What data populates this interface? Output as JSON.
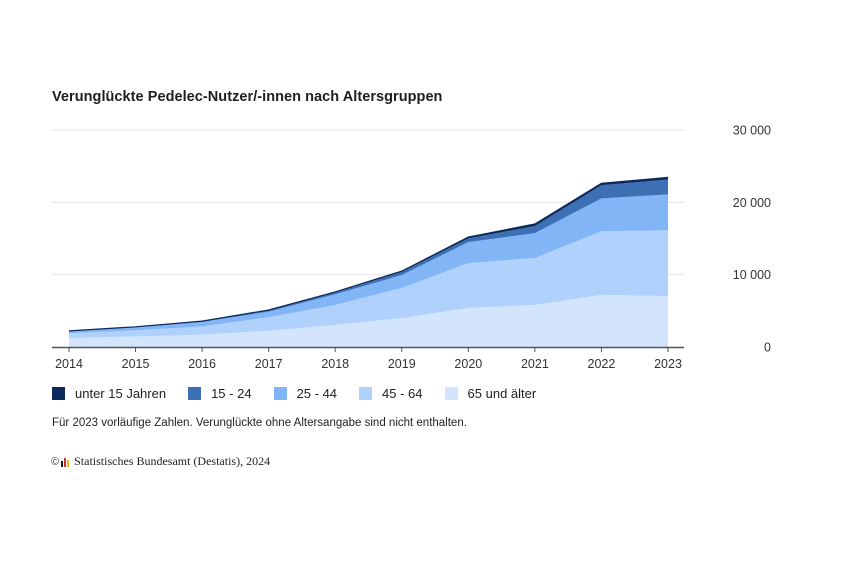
{
  "chart_data": {
    "type": "area",
    "stacked": true,
    "title": "Verunglückte Pedelec-Nutzer/-innen nach Altersgruppen",
    "xlabel": "",
    "ylabel": "",
    "categories": [
      "2014",
      "2015",
      "2016",
      "2017",
      "2018",
      "2019",
      "2020",
      "2021",
      "2022",
      "2023"
    ],
    "y_ticks": [
      "0",
      "10 000",
      "20 000",
      "30 000"
    ],
    "ylim": [
      0,
      30000
    ],
    "y_axis_position": "right",
    "grid": true,
    "legend_position": "bottom",
    "series": [
      {
        "name": "unter 15 Jahren",
        "color": "#0b2a5b",
        "values": [
          20,
          30,
          40,
          60,
          70,
          130,
          190,
          280,
          280,
          300
        ]
      },
      {
        "name": "15 - 24",
        "color": "#3c6fb4",
        "values": [
          50,
          60,
          90,
          160,
          250,
          420,
          500,
          970,
          1800,
          2050
        ]
      },
      {
        "name": "25 - 44",
        "color": "#82b5f5",
        "values": [
          250,
          400,
          600,
          800,
          1500,
          1800,
          2900,
          3450,
          4550,
          4950
        ]
      },
      {
        "name": "45 - 64",
        "color": "#b0d1fb",
        "values": [
          650,
          850,
          1150,
          1850,
          2750,
          4150,
          6200,
          6500,
          8800,
          9100
        ]
      },
      {
        "name": "65 und älter",
        "color": "#d3e5fd",
        "values": [
          1250,
          1450,
          1700,
          2250,
          3050,
          4000,
          5400,
          5800,
          7200,
          7050
        ]
      }
    ],
    "annotations": [
      "Für 2023 vorläufige Zahlen. Verunglückte ohne Altersangabe sind nicht enthalten."
    ]
  },
  "header": {
    "title": "Verunglückte Pedelec-Nutzer/-innen nach Altersgruppen"
  },
  "legend": {
    "items": [
      {
        "label": "unter 15 Jahren",
        "color": "#0b2a5b"
      },
      {
        "label": "15 - 24",
        "color": "#3c6fb4"
      },
      {
        "label": "25 - 44",
        "color": "#82b5f5"
      },
      {
        "label": "45 - 64",
        "color": "#b0d1fb"
      },
      {
        "label": "65 und älter",
        "color": "#d3e5fd"
      }
    ]
  },
  "footer": {
    "note": "Für 2023 vorläufige Zahlen. Verunglückte ohne Altersangabe sind nicht enthalten.",
    "copyright_symbol": "©",
    "source": "Statistisches Bundesamt (Destatis), 2024"
  }
}
